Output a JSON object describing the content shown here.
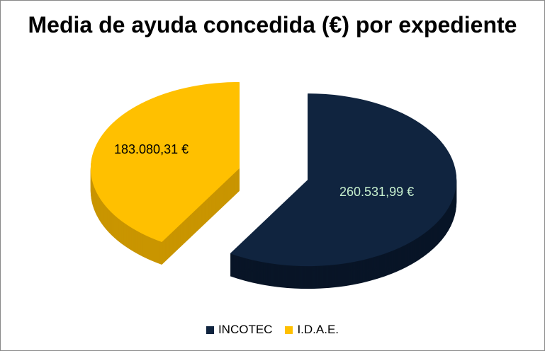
{
  "chart_data": {
    "type": "pie",
    "title": "Media de ayuda concedida (€) por expediente",
    "style": "3d-exploded",
    "legend_position": "bottom",
    "slices": [
      {
        "name": "INCOTEC",
        "value": 260531.99,
        "label": "260.531,99 €",
        "color": "#10243f",
        "side_color": "#081527",
        "label_color": "#c6efce"
      },
      {
        "name": "I.D.A.E.",
        "value": 183080.31,
        "label": "183.080,31 €",
        "color": "#ffc000",
        "side_color": "#c99500",
        "label_color": "#000000"
      }
    ]
  }
}
